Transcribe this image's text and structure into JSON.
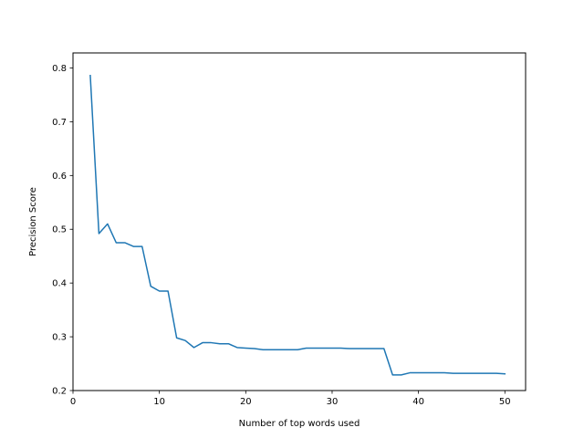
{
  "chart_data": {
    "type": "line",
    "title": "",
    "xlabel": "Number of top words used",
    "ylabel": "Precision Score",
    "xlim": [
      0,
      52.4
    ],
    "ylim": [
      0.2,
      0.828
    ],
    "xticks": [
      0,
      10,
      20,
      30,
      40,
      50
    ],
    "yticks": [
      0.2,
      0.3,
      0.4,
      0.5,
      0.6,
      0.7,
      0.8
    ],
    "xtick_labels": [
      "0",
      "10",
      "20",
      "30",
      "40",
      "50"
    ],
    "ytick_labels": [
      "0.2",
      "0.3",
      "0.4",
      "0.5",
      "0.6",
      "0.7",
      "0.8"
    ],
    "grid": false,
    "line_color": "#1f77b4",
    "series": [
      {
        "x": [
          2,
          3,
          4,
          5,
          6,
          7,
          8,
          9,
          10,
          11,
          12,
          13,
          14,
          15,
          16,
          17,
          18,
          19,
          20,
          21,
          22,
          23,
          24,
          25,
          26,
          27,
          28,
          29,
          30,
          31,
          32,
          33,
          34,
          35,
          36,
          37,
          38,
          39,
          40,
          41,
          42,
          43,
          44,
          45,
          46,
          47,
          48,
          49,
          50
        ],
        "values": [
          0.786,
          0.492,
          0.51,
          0.475,
          0.475,
          0.468,
          0.468,
          0.394,
          0.385,
          0.385,
          0.298,
          0.293,
          0.28,
          0.289,
          0.289,
          0.287,
          0.287,
          0.28,
          0.279,
          0.278,
          0.276,
          0.276,
          0.276,
          0.276,
          0.276,
          0.279,
          0.279,
          0.279,
          0.279,
          0.279,
          0.278,
          0.278,
          0.278,
          0.278,
          0.278,
          0.229,
          0.229,
          0.233,
          0.233,
          0.233,
          0.233,
          0.233,
          0.232,
          0.232,
          0.232,
          0.232,
          0.232,
          0.232,
          0.231
        ]
      }
    ]
  }
}
